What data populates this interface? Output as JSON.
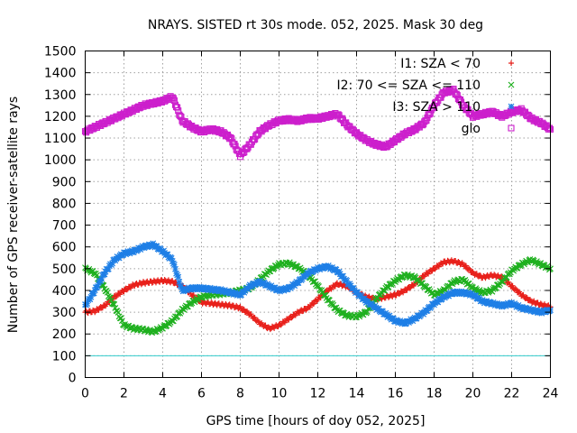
{
  "chart_data": {
    "type": "scatter",
    "title": "NRAYS. SISTED rt 30s mode. 052, 2025. Mask 30 deg",
    "xlabel": "GPS time [hours of doy 052, 2025]",
    "ylabel": "Number of GPS receiver-satellite rays",
    "xlim": [
      0,
      24
    ],
    "ylim": [
      0,
      1500
    ],
    "xticks": [
      0,
      2,
      4,
      6,
      8,
      10,
      12,
      14,
      16,
      18,
      20,
      22,
      24
    ],
    "yticks": [
      0,
      100,
      200,
      300,
      400,
      500,
      600,
      700,
      800,
      900,
      1000,
      1100,
      1200,
      1300,
      1400,
      1500
    ],
    "grid": true,
    "legend_position": "top-right",
    "reference_line": {
      "y": 100,
      "color": "#33cccc"
    },
    "series": [
      {
        "name": "I1: SZA < 70",
        "marker": "plus",
        "color": "#e8201b",
        "x": [
          0,
          0.5,
          1,
          1.5,
          2,
          2.5,
          3,
          3.5,
          4,
          4.5,
          5,
          5.5,
          6,
          6.5,
          7,
          7.5,
          8,
          8.5,
          9,
          9.5,
          10,
          10.5,
          11,
          11.5,
          12,
          12.5,
          13,
          13.5,
          14,
          14.5,
          15,
          15.5,
          16,
          16.5,
          17,
          17.5,
          18,
          18.5,
          19,
          19.5,
          20,
          20.5,
          21,
          21.5,
          22,
          22.5,
          23,
          23.5,
          24
        ],
        "y": [
          300,
          305,
          330,
          370,
          400,
          425,
          435,
          440,
          445,
          440,
          420,
          380,
          345,
          340,
          335,
          330,
          320,
          290,
          250,
          225,
          240,
          270,
          300,
          320,
          360,
          400,
          430,
          420,
          390,
          370,
          360,
          370,
          380,
          400,
          430,
          470,
          500,
          530,
          535,
          520,
          480,
          460,
          470,
          460,
          420,
          380,
          350,
          335,
          325
        ]
      },
      {
        "name": "I2: 70 <= SZA <= 110",
        "marker": "cross",
        "color": "#1fb01f",
        "x": [
          0,
          0.5,
          1,
          1.5,
          2,
          2.5,
          3,
          3.5,
          4,
          4.5,
          5,
          5.5,
          6,
          6.5,
          7,
          7.5,
          8,
          8.5,
          9,
          9.5,
          10,
          10.5,
          11,
          11.5,
          12,
          12.5,
          13,
          13.5,
          14,
          14.5,
          15,
          15.5,
          16,
          16.5,
          17,
          17.5,
          18,
          18.5,
          19,
          19.5,
          20,
          20.5,
          21,
          21.5,
          22,
          22.5,
          23,
          23.5,
          24
        ],
        "y": [
          500,
          480,
          410,
          330,
          240,
          225,
          220,
          210,
          230,
          260,
          310,
          345,
          370,
          380,
          385,
          390,
          400,
          410,
          450,
          490,
          520,
          525,
          505,
          470,
          420,
          360,
          310,
          285,
          280,
          300,
          360,
          410,
          445,
          470,
          460,
          420,
          380,
          400,
          440,
          450,
          410,
          390,
          400,
          440,
          490,
          520,
          540,
          520,
          500
        ]
      },
      {
        "name": "I3: SZA > 110",
        "marker": "star",
        "color": "#1e7fe6",
        "x": [
          0,
          0.5,
          1,
          1.5,
          2,
          2.5,
          3,
          3.5,
          4,
          4.5,
          5,
          5.5,
          6,
          6.5,
          7,
          7.5,
          8,
          8.5,
          9,
          9.5,
          10,
          10.5,
          11,
          11.5,
          12,
          12.5,
          13,
          13.5,
          14,
          14.5,
          15,
          15.5,
          16,
          16.5,
          17,
          17.5,
          18,
          18.5,
          19,
          19.5,
          20,
          20.5,
          21,
          21.5,
          22,
          22.5,
          23,
          23.5,
          24
        ],
        "y": [
          330,
          400,
          480,
          540,
          570,
          580,
          600,
          610,
          580,
          540,
          400,
          410,
          410,
          405,
          400,
          390,
          380,
          420,
          440,
          420,
          400,
          410,
          440,
          480,
          500,
          510,
          490,
          440,
          390,
          350,
          320,
          290,
          260,
          250,
          270,
          300,
          340,
          370,
          390,
          390,
          380,
          350,
          340,
          330,
          340,
          320,
          310,
          300,
          310
        ]
      },
      {
        "name": "glo",
        "marker": "square",
        "color": "#cc1fcc",
        "x": [
          0,
          0.5,
          1,
          1.5,
          2,
          2.5,
          3,
          3.5,
          4,
          4.5,
          5,
          5.5,
          6,
          6.5,
          7,
          7.5,
          8,
          8.5,
          9,
          9.5,
          10,
          10.5,
          11,
          11.5,
          12,
          12.5,
          13,
          13.5,
          14,
          14.5,
          15,
          15.5,
          16,
          16.5,
          17,
          17.5,
          18,
          18.5,
          19,
          19.5,
          20,
          20.5,
          21,
          21.5,
          22,
          22.5,
          23,
          23.5,
          24
        ],
        "y": [
          1130,
          1150,
          1170,
          1190,
          1210,
          1230,
          1250,
          1260,
          1270,
          1290,
          1180,
          1150,
          1130,
          1140,
          1130,
          1100,
          1020,
          1070,
          1130,
          1160,
          1180,
          1185,
          1180,
          1190,
          1190,
          1200,
          1210,
          1160,
          1120,
          1090,
          1070,
          1060,
          1090,
          1120,
          1140,
          1170,
          1250,
          1310,
          1320,
          1250,
          1200,
          1210,
          1220,
          1200,
          1220,
          1230,
          1190,
          1170,
          1140
        ]
      }
    ]
  }
}
